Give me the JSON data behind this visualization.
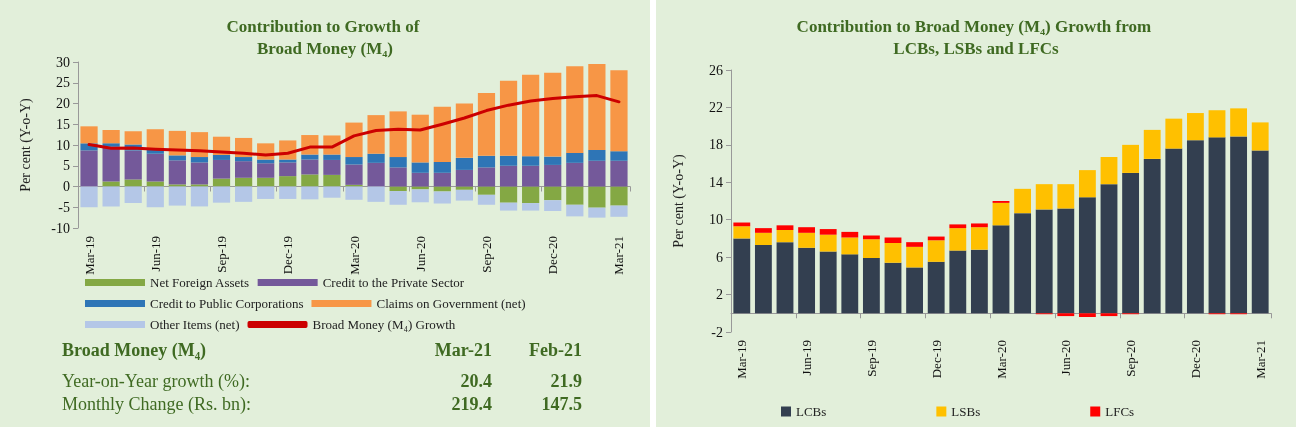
{
  "chart_data": [
    {
      "type": "bar",
      "title": "Contribution to Growth of Broad Money (M₄)",
      "ylabel": "Per cent (Y-o-Y)",
      "stacked": true,
      "legend": "bottom",
      "categories": [
        "Mar-19",
        null,
        null,
        "Jun-19",
        null,
        null,
        "Sep-19",
        null,
        null,
        "Dec-19",
        null,
        null,
        "Mar-20",
        null,
        null,
        "Jun-20",
        null,
        null,
        "Sep-20",
        null,
        null,
        "Dec-20",
        null,
        null,
        "Mar-21"
      ],
      "ylim": [
        -10,
        30
      ],
      "yticks": [
        -10,
        -5,
        0,
        5,
        10,
        15,
        20,
        25,
        30
      ],
      "series": [
        {
          "name": "Net Foreign Assets",
          "color": "#84a844",
          "values": [
            0,
            1.2,
            1.7,
            1.2,
            0.5,
            0.5,
            1.9,
            2.1,
            2.1,
            2.5,
            2.9,
            2.8,
            0.4,
            0,
            -1.1,
            -0.7,
            -1.2,
            -0.8,
            -2.0,
            -3.9,
            -4.0,
            -3.3,
            -4.4,
            -5.1,
            -4.6
          ]
        },
        {
          "name": "Credit to the Private Sector",
          "color": "#74599a",
          "values": [
            8.7,
            8.4,
            7.0,
            6.7,
            5.8,
            5.3,
            4.5,
            4.0,
            3.5,
            3.3,
            3.6,
            3.6,
            4.9,
            5.7,
            4.6,
            3.3,
            3.3,
            4.0,
            4.6,
            5.0,
            5.0,
            5.2,
            5.7,
            6.2,
            6.2
          ]
        },
        {
          "name": "Credit to Public Corporations",
          "color": "#2e75b6",
          "values": [
            1.7,
            0.8,
            1.4,
            0.9,
            1.2,
            1.3,
            1.2,
            1.0,
            0.9,
            0.7,
            1.2,
            1.3,
            1.8,
            2.2,
            2.5,
            2.5,
            2.6,
            2.9,
            2.8,
            2.4,
            2.3,
            2.0,
            2.4,
            2.6,
            2.3
          ]
        },
        {
          "name": "Claims on Government (net)",
          "color": "#f79646",
          "values": [
            4.1,
            3.2,
            3.2,
            5.0,
            5.9,
            6.0,
            4.4,
            4.6,
            3.9,
            4.6,
            4.7,
            4.6,
            8.3,
            9.3,
            11.0,
            11.5,
            13.3,
            13.1,
            15.1,
            18.1,
            19.6,
            20.2,
            20.9,
            20.7,
            19.5
          ]
        },
        {
          "name": "Other Items (net)",
          "color": "#b4c7e7",
          "values": [
            -5.0,
            -4.8,
            -4.0,
            -5.0,
            -4.6,
            -4.8,
            -3.9,
            -3.7,
            -3.0,
            -3.0,
            -3.1,
            -2.7,
            -3.2,
            -3.7,
            -3.3,
            -3.1,
            -2.9,
            -2.6,
            -2.4,
            -1.9,
            -1.8,
            -2.6,
            -2.8,
            -2.4,
            -2.7
          ]
        },
        {
          "name": "Broad Money (M₄) Growth",
          "type": "line",
          "color": "#cc0000",
          "values": [
            10.1,
            9.2,
            9.3,
            9.0,
            8.8,
            8.6,
            8.3,
            8.0,
            7.6,
            8.0,
            9.5,
            9.5,
            12.2,
            13.5,
            13.8,
            13.6,
            15.0,
            16.5,
            18.3,
            19.6,
            20.6,
            21.2,
            21.6,
            21.9,
            20.4
          ]
        }
      ]
    },
    {
      "type": "bar",
      "title": "Contribution to Broad Money (M₄) Growth from LCBs, LSBs and LFCs",
      "ylabel": "Per cent (Y-o-Y)",
      "stacked": true,
      "legend": "bottom",
      "categories": [
        "Mar-19",
        null,
        null,
        "Jun-19",
        null,
        null,
        "Sep-19",
        null,
        null,
        "Dec-19",
        null,
        null,
        "Mar-20",
        null,
        null,
        "Jun-20",
        null,
        null,
        "Sep-20",
        null,
        null,
        "Dec-20",
        null,
        null,
        "Mar-21"
      ],
      "ylim": [
        -2,
        26
      ],
      "yticks": [
        -2,
        2,
        6,
        10,
        14,
        18,
        22,
        26
      ],
      "series": [
        {
          "name": "LCBs",
          "color": "#333f50",
          "values": [
            8.0,
            7.3,
            7.6,
            7.0,
            6.6,
            6.3,
            5.9,
            5.4,
            4.9,
            5.5,
            6.7,
            6.8,
            9.4,
            10.7,
            11.1,
            11.2,
            12.4,
            13.8,
            15.0,
            16.5,
            17.6,
            18.5,
            18.8,
            18.9,
            17.4
          ]
        },
        {
          "name": "LSBs",
          "color": "#ffc000",
          "values": [
            1.3,
            1.3,
            1.3,
            1.6,
            1.8,
            1.8,
            2.0,
            2.1,
            2.2,
            2.3,
            2.4,
            2.4,
            2.4,
            2.6,
            2.7,
            2.6,
            2.9,
            2.9,
            3.0,
            3.1,
            3.2,
            2.9,
            2.9,
            3.0,
            3.0
          ]
        },
        {
          "name": "LFCs",
          "color": "#ff0000",
          "values": [
            0.4,
            0.5,
            0.5,
            0.6,
            0.6,
            0.6,
            0.4,
            0.6,
            0.5,
            0.4,
            0.4,
            0.4,
            0.2,
            0,
            -0.1,
            -0.3,
            -0.4,
            -0.3,
            -0.1,
            0,
            0,
            0,
            -0.1,
            -0.1,
            0
          ]
        }
      ]
    },
    {
      "type": "other",
      "title": "Broad Money (M₄)",
      "categories": [
        "Mar-21",
        "Feb-21"
      ],
      "data_labels": true,
      "series": [
        {
          "name": "Year-on-Year growth (%):",
          "values": [
            20.4,
            21.9
          ]
        },
        {
          "name": "Monthly Change (Rs. bn):",
          "values": [
            219.4,
            147.5
          ]
        }
      ]
    }
  ]
}
